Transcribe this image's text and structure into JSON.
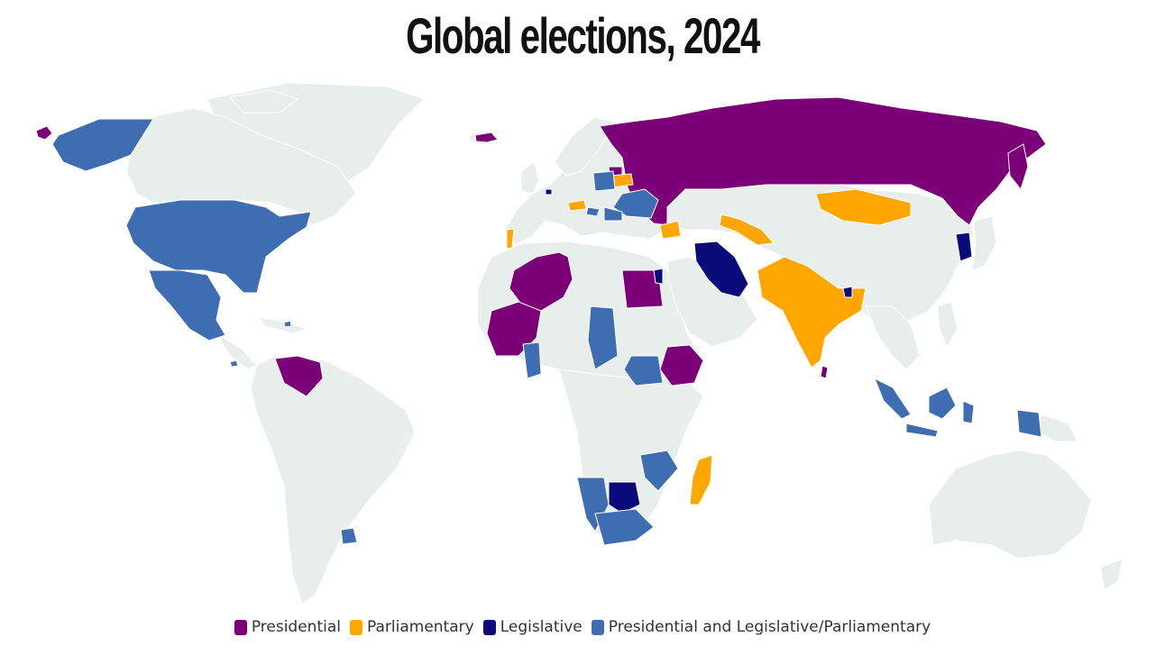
{
  "title": "Global elections, 2024",
  "colors": {
    "land": "#e8eeeb",
    "border": "#ffffff",
    "presidential": "#7b0078",
    "parliamentary": "#ffa600",
    "legislative": "#0b0a7a",
    "both": "#3f6db2"
  },
  "legend": [
    {
      "key": "presidential",
      "label": "Presidential"
    },
    {
      "key": "parliamentary",
      "label": "Parliamentary"
    },
    {
      "key": "legislative",
      "label": "Legislative"
    },
    {
      "key": "both",
      "label": "Presidential and Legislative/Parliamentary"
    }
  ]
}
